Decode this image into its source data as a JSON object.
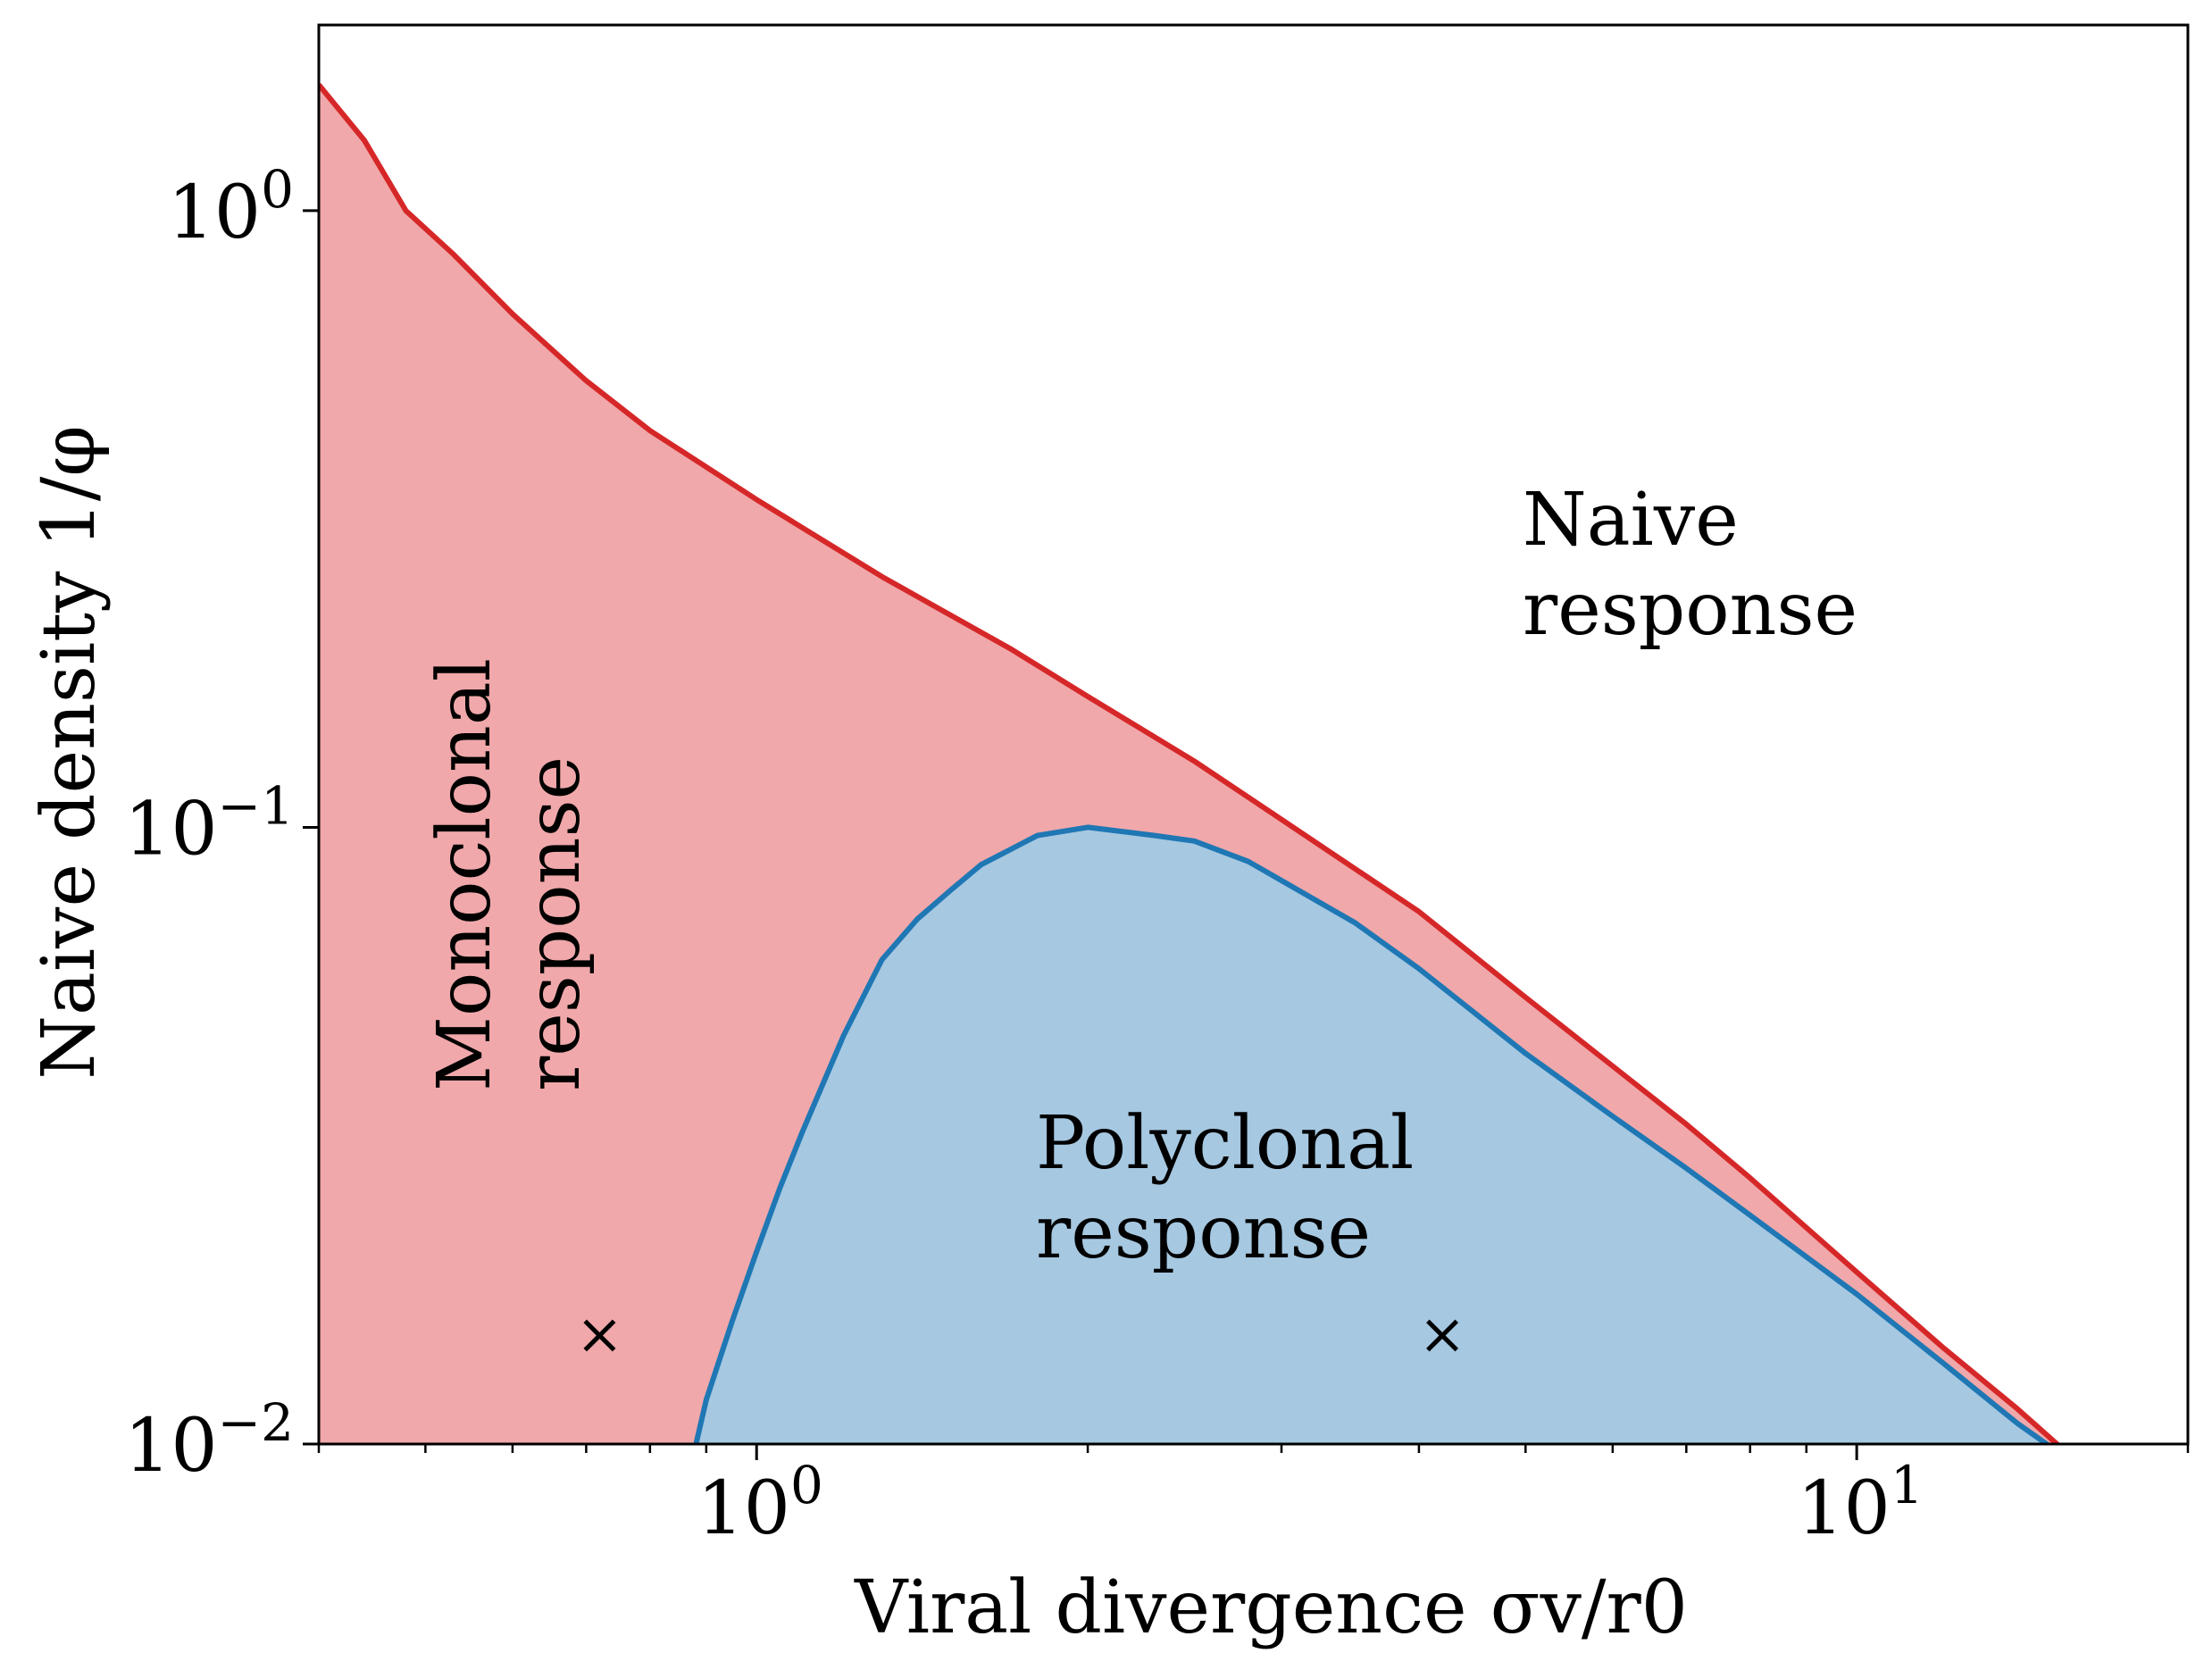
{
  "chart_data": {
    "type": "area",
    "xlabel": "Viral divergence σv/r0",
    "ylabel": "Naive density 1/φ",
    "xscale": "log",
    "yscale": "log",
    "xlim": [
      0.4,
      20
    ],
    "ylim": [
      0.01,
      2
    ],
    "x_ticks": [
      {
        "value": 1,
        "label": "10",
        "exp": "0"
      },
      {
        "value": 10,
        "label": "10",
        "exp": "1"
      }
    ],
    "y_ticks": [
      {
        "value": 0.01,
        "label": "10",
        "exp": "−2"
      },
      {
        "value": 0.1,
        "label": "10",
        "exp": "−1"
      },
      {
        "value": 1,
        "label": "10",
        "exp": "0"
      }
    ],
    "grid": false,
    "colors": {
      "mono_line": "#d62728",
      "mono_fill": "#f0a8aa",
      "poly_line": "#1f77b4",
      "poly_fill": "#a6c8e1"
    },
    "series": [
      {
        "key": "boundary_naive_mono",
        "x": [
          0.4,
          0.44,
          0.48,
          0.53,
          0.6,
          0.7,
          0.8,
          1.0,
          1.3,
          1.7,
          2.0,
          2.5,
          3.0,
          4.0,
          5.0,
          6.0,
          7.0,
          8.0,
          10.0,
          12.0,
          14.0,
          15.5
        ],
        "y": [
          1.6,
          1.3,
          1.0,
          0.85,
          0.68,
          0.53,
          0.44,
          0.34,
          0.255,
          0.195,
          0.163,
          0.128,
          0.103,
          0.073,
          0.053,
          0.041,
          0.033,
          0.027,
          0.019,
          0.0143,
          0.0114,
          0.0097
        ]
      },
      {
        "key": "boundary_poly",
        "x": [
          0.875,
          0.9,
          0.95,
          1.0,
          1.05,
          1.1,
          1.2,
          1.3,
          1.4,
          1.5,
          1.6,
          1.8,
          2.0,
          2.3,
          2.5,
          2.8,
          3.0,
          3.5,
          4.0,
          5.0,
          6.0,
          7.0,
          8.0,
          10.0,
          12.0,
          14.0,
          15.5
        ],
        "y": [
          0.0095,
          0.0118,
          0.0158,
          0.0205,
          0.026,
          0.032,
          0.046,
          0.061,
          0.071,
          0.079,
          0.087,
          0.097,
          0.1,
          0.097,
          0.095,
          0.088,
          0.082,
          0.07,
          0.059,
          0.043,
          0.034,
          0.028,
          0.0235,
          0.0175,
          0.0135,
          0.0108,
          0.0095
        ]
      }
    ],
    "markers": [
      {
        "x": 0.72,
        "y": 0.015,
        "symbol": "×"
      },
      {
        "x": 4.2,
        "y": 0.015,
        "symbol": "×"
      }
    ],
    "annotations": [
      {
        "key": "naive",
        "lines": [
          "Naive",
          "response"
        ]
      },
      {
        "key": "mono",
        "lines": [
          "Monoclonal",
          "response"
        ]
      },
      {
        "key": "poly",
        "lines": [
          "Polyclonal",
          "response"
        ]
      }
    ]
  }
}
